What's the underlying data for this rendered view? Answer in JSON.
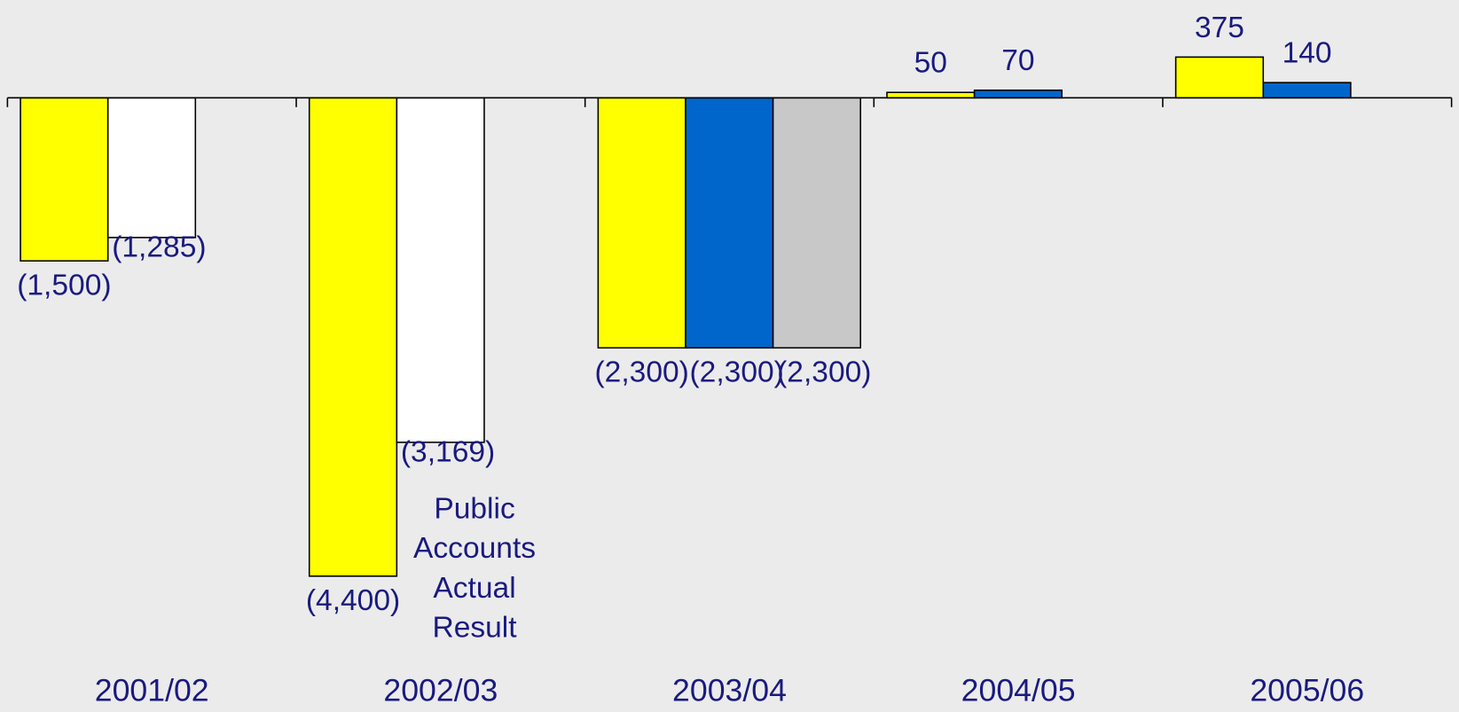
{
  "chart_data": {
    "type": "bar",
    "categories": [
      "2001/02",
      "2002/03",
      "2003/04",
      "2004/05",
      "2005/06"
    ],
    "series": [
      {
        "color": "#ffff00",
        "values": [
          -1500,
          -4400,
          -2300,
          50,
          375
        ],
        "value_labels": [
          "(1,500)",
          "(4,400)",
          "(2,300)",
          "50",
          "375"
        ]
      },
      {
        "color": "#ffffff",
        "values": [
          -1285,
          -3169,
          null,
          null,
          null
        ],
        "value_labels": [
          "(1,285)",
          "(3,169)",
          null,
          null,
          null
        ]
      },
      {
        "color": "#0066cc",
        "values": [
          null,
          null,
          -2300,
          70,
          140
        ],
        "value_labels": [
          null,
          null,
          "(2,300)",
          "70",
          "140"
        ]
      },
      {
        "color": "#c8c8c8",
        "values": [
          null,
          null,
          -2300,
          null,
          null
        ],
        "value_labels": [
          null,
          null,
          "(2,300)",
          null,
          null
        ]
      }
    ],
    "annotation": [
      "Public",
      "Accounts",
      "Actual",
      "Result"
    ],
    "ylim": [
      -5000,
      900
    ]
  }
}
